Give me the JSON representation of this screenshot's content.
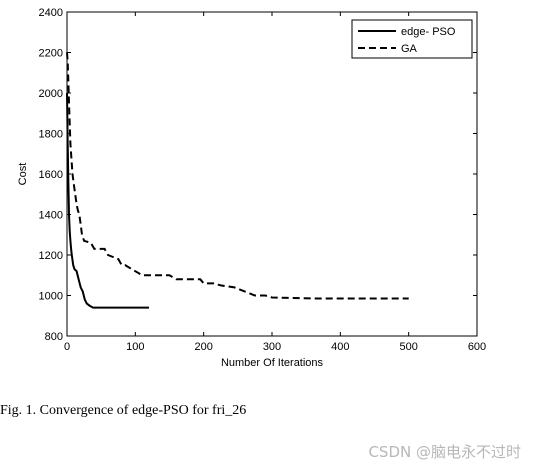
{
  "chart_data": {
    "type": "line",
    "title": "",
    "xlabel": "Number Of Iterations",
    "ylabel": "Cost",
    "xlim": [
      0,
      600
    ],
    "ylim": [
      800,
      2400
    ],
    "xticks": [
      0,
      100,
      200,
      300,
      400,
      500,
      600
    ],
    "yticks": [
      800,
      1000,
      1200,
      1400,
      1600,
      1800,
      2000,
      2200,
      2400
    ],
    "grid": false,
    "legend_position": "top-right",
    "series": [
      {
        "name": "edge-  PSO",
        "style": "solid",
        "color": "#000000",
        "x": [
          0,
          1,
          2,
          3,
          4,
          5,
          6,
          7,
          9,
          11,
          14,
          17,
          20,
          23,
          26,
          29,
          33,
          38,
          45,
          60,
          80,
          100,
          120
        ],
        "y": [
          2000,
          1750,
          1550,
          1400,
          1320,
          1270,
          1230,
          1200,
          1150,
          1130,
          1120,
          1080,
          1040,
          1020,
          980,
          960,
          950,
          940,
          940,
          940,
          940,
          940,
          940
        ]
      },
      {
        "name": "GA",
        "style": "dashed",
        "color": "#000000",
        "x": [
          0,
          1,
          2,
          3,
          4,
          5,
          6,
          7,
          8,
          10,
          12,
          14,
          16,
          18,
          20,
          22,
          25,
          35,
          40,
          55,
          60,
          75,
          80,
          85,
          95,
          100,
          110,
          115,
          120,
          125,
          150,
          160,
          170,
          195,
          200,
          215,
          225,
          245,
          260,
          275,
          290,
          300,
          365,
          500
        ],
        "y": [
          2200,
          2150,
          2050,
          1950,
          1850,
          1750,
          1700,
          1650,
          1600,
          1550,
          1500,
          1450,
          1420,
          1400,
          1350,
          1300,
          1270,
          1260,
          1230,
          1230,
          1200,
          1180,
          1150,
          1150,
          1130,
          1120,
          1100,
          1100,
          1100,
          1100,
          1100,
          1080,
          1080,
          1080,
          1060,
          1060,
          1050,
          1040,
          1020,
          1000,
          1000,
          990,
          985,
          985
        ]
      }
    ]
  },
  "caption": "Fig. 1.  Convergence of edge-PSO for fri_26",
  "watermark": "CSDN @脑电永不过时"
}
